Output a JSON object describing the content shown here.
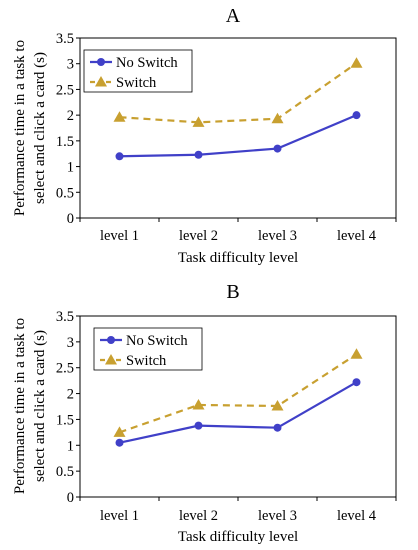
{
  "chart_data": [
    {
      "type": "line",
      "title": "A",
      "xlabel": "Task difficulty level",
      "ylabel": "Performance time in a task to select and click a card (s)",
      "ylabel_lines": [
        "Performance time in a task to",
        "select and click a card (s)"
      ],
      "categories": [
        "level 1",
        "level 2",
        "level 3",
        "level 4"
      ],
      "ylim": [
        0,
        3.5
      ],
      "yticks": [
        "0",
        "0.5",
        "1",
        "1.5",
        "2",
        "2.5",
        "3",
        "3.5"
      ],
      "grid": false,
      "legend": "top-left",
      "series": [
        {
          "name": "No Switch",
          "values": [
            1.2,
            1.23,
            1.35,
            2.0
          ],
          "color": "#4040c8",
          "marker": "circle",
          "dash": "solid"
        },
        {
          "name": "Switch",
          "values": [
            1.96,
            1.86,
            1.93,
            3.01
          ],
          "color": "#c8a030",
          "marker": "triangle",
          "dash": "dashed"
        }
      ]
    },
    {
      "type": "line",
      "title": "B",
      "xlabel": "Task difficulty level",
      "ylabel": "Performance time in a task to select and click a card (s)",
      "ylabel_lines": [
        "Performance time in a task to",
        "select and click a card (s)"
      ],
      "categories": [
        "level 1",
        "level 2",
        "level 3",
        "level 4"
      ],
      "ylim": [
        0,
        3.5
      ],
      "yticks": [
        "0",
        "0.5",
        "1",
        "1.5",
        "2",
        "2.5",
        "3",
        "3.5"
      ],
      "grid": false,
      "legend": "top-left",
      "series": [
        {
          "name": "No Switch",
          "values": [
            1.05,
            1.38,
            1.34,
            2.22
          ],
          "color": "#4040c8",
          "marker": "circle",
          "dash": "solid"
        },
        {
          "name": "Switch",
          "values": [
            1.25,
            1.78,
            1.76,
            2.76
          ],
          "color": "#c8a030",
          "marker": "triangle",
          "dash": "dashed"
        }
      ]
    }
  ]
}
